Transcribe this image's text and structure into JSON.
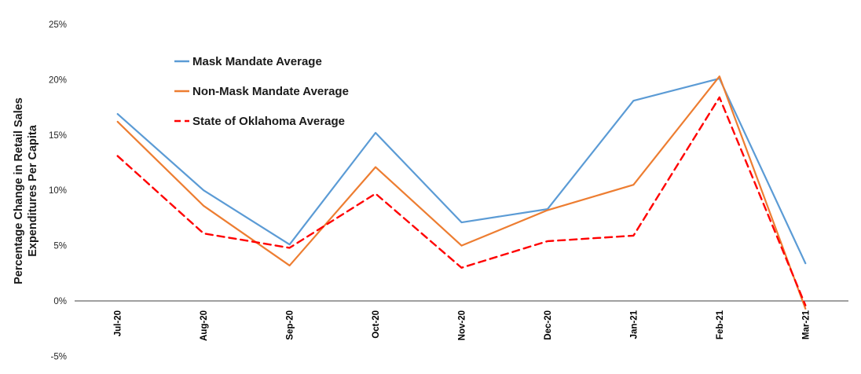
{
  "chart_data": {
    "type": "line",
    "title": "",
    "ylabel_line1": "Percentage Change in Retail Sales",
    "ylabel_line2": "Expenditures Per Capita",
    "xlabel": "",
    "categories": [
      "Jul-20",
      "Aug-20",
      "Sep-20",
      "Oct-20",
      "Nov-20",
      "Dec-20",
      "Jan-21",
      "Feb-21",
      "Mar-21"
    ],
    "series": [
      {
        "name": "Mask Mandate Average",
        "values": [
          16.9,
          10.0,
          5.1,
          15.2,
          7.1,
          8.3,
          18.1,
          20.1,
          3.4
        ],
        "color": "#5B9BD5",
        "dash": "solid"
      },
      {
        "name": "Non-Mask Mandate Average",
        "values": [
          16.2,
          8.6,
          3.2,
          12.1,
          5.0,
          8.2,
          10.5,
          20.3,
          -0.7
        ],
        "color": "#ED7D31",
        "dash": "solid"
      },
      {
        "name": "State of Oklahoma Average",
        "values": [
          13.1,
          6.1,
          4.8,
          9.7,
          3.0,
          5.4,
          5.9,
          18.4,
          -0.4
        ],
        "color": "#FF0000",
        "dash": "dashed"
      }
    ],
    "y_tick_values": [
      25,
      20,
      15,
      10,
      5,
      0,
      -5
    ],
    "y_tick_labels": [
      "25%",
      "20%",
      "15%",
      "10%",
      "5%",
      "0%",
      "-5%"
    ],
    "ylim": [
      -5,
      25
    ],
    "grid": "off",
    "legend_position": "inside-top-left",
    "axis_line_color": "#808080",
    "background_color": "#ffffff"
  }
}
